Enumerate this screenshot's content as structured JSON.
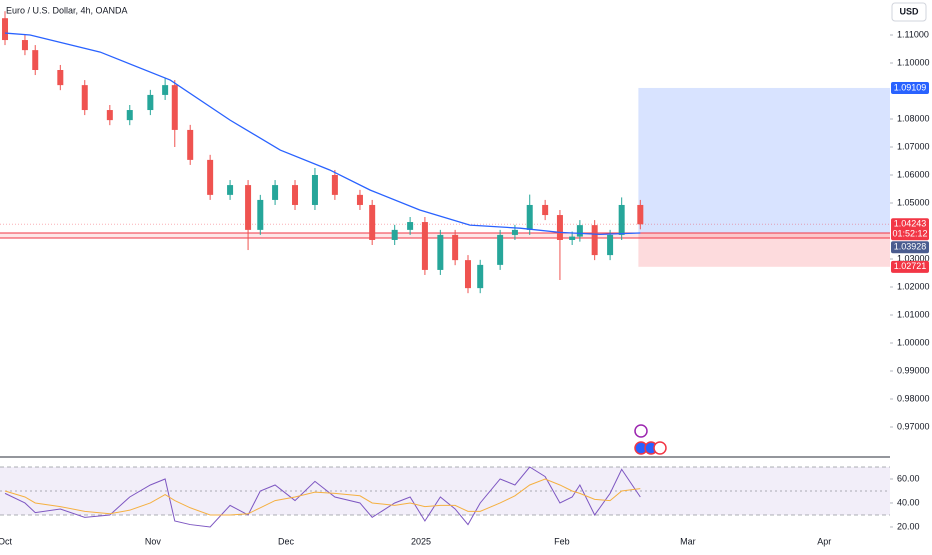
{
  "chart_data": [
    {
      "type": "candlestick",
      "title": "Euro / U.S. Dollar, 4h, OANDA",
      "currency": "USD",
      "up_color": "#26a69a",
      "down_color": "#ef5350",
      "x": [
        0,
        3.1,
        4.7,
        8.6,
        12.4,
        16.3,
        19.4,
        22.6,
        24.9,
        26.4,
        28.8,
        31.9,
        35.0,
        37.8,
        39.7,
        42.0,
        45.1,
        48.2,
        51.3,
        55.2,
        57.1,
        60.6,
        63.0,
        65.3,
        67.7,
        70.0,
        72.0,
        73.9,
        77.0,
        79.3,
        81.6,
        84.0,
        86.3,
        88.2,
        89.4,
        91.7,
        94.1,
        95.9,
        98.8
      ],
      "open": [
        1.116,
        1.1082,
        1.1046,
        1.0975,
        1.0921,
        1.0832,
        1.0796,
        1.0832,
        1.0886,
        1.0921,
        1.0761,
        1.0654,
        1.0529,
        1.0564,
        1.0404,
        1.0511,
        1.0564,
        1.0493,
        1.06,
        1.0529,
        1.0493,
        1.0368,
        1.0404,
        1.0432,
        1.0261,
        1.0386,
        1.0296,
        1.0196,
        1.0279,
        1.0386,
        1.0404,
        1.0493,
        1.0457,
        1.0368,
        1.038,
        1.0421,
        1.0314,
        1.0386,
        1.0493
      ],
      "high": [
        1.1185,
        1.11,
        1.1064,
        1.0993,
        1.0939,
        1.085,
        1.085,
        1.0904,
        1.0945,
        1.0939,
        1.0779,
        1.0672,
        1.0582,
        1.0582,
        1.0529,
        1.0582,
        1.0582,
        1.0625,
        1.0618,
        1.0547,
        1.0511,
        1.0422,
        1.045,
        1.045,
        1.0404,
        1.0404,
        1.0314,
        1.0297,
        1.0404,
        1.0422,
        1.053,
        1.0511,
        1.0475,
        1.0398,
        1.0439,
        1.0439,
        1.0404,
        1.052,
        1.0511
      ],
      "low": [
        1.1064,
        1.1028,
        1.0957,
        1.0903,
        1.0814,
        1.0778,
        1.0778,
        1.0814,
        1.0868,
        1.07,
        1.0636,
        1.0511,
        1.0511,
        1.0332,
        1.0386,
        1.0493,
        1.0475,
        1.0475,
        1.0511,
        1.0475,
        1.035,
        1.035,
        1.0386,
        1.0243,
        1.0243,
        1.0278,
        1.0178,
        1.0178,
        1.0261,
        1.0368,
        1.0386,
        1.0439,
        1.0225,
        1.035,
        1.0362,
        1.0296,
        1.0296,
        1.0368,
        1.0406
      ],
      "close": [
        1.1082,
        1.1046,
        1.0975,
        1.0921,
        1.0832,
        1.0796,
        1.0832,
        1.0886,
        1.0921,
        1.0761,
        1.0654,
        1.0529,
        1.0564,
        1.0404,
        1.0511,
        1.0564,
        1.0493,
        1.06,
        1.0529,
        1.0493,
        1.0368,
        1.0404,
        1.0432,
        1.0261,
        1.0386,
        1.0296,
        1.0196,
        1.0279,
        1.0386,
        1.0404,
        1.0493,
        1.0457,
        1.0368,
        1.038,
        1.0421,
        1.0314,
        1.0386,
        1.0493,
        1.0424
      ],
      "overlays": [
        {
          "color": "#2962ff",
          "x": [
            0,
            3.9,
            14.8,
            25.7,
            35.0,
            42.8,
            50.5,
            56.8,
            64.5,
            72.3,
            80.1,
            86.3,
            92.5,
            98.8
          ],
          "values": [
            1.1107,
            1.11,
            1.1039,
            1.0939,
            1.0796,
            1.0689,
            1.0618,
            1.0546,
            1.0475,
            1.0421,
            1.041,
            1.0395,
            1.0388,
            1.0393
          ]
        }
      ],
      "levels": [
        1.0393,
        1.0375
      ],
      "level_color": "#f23645",
      "position": {
        "x_start": 98.5,
        "entry": 1.0393,
        "target": 1.09109,
        "stop": 1.02721
      },
      "price_labels": [
        {
          "value": 1.09109,
          "color": "#2962ff"
        },
        {
          "value": 1.04243,
          "color": "#f23645",
          "countdown": "01:52:12"
        },
        {
          "value": 1.03928,
          "color": "#4a5c8f"
        },
        {
          "value": 1.02721,
          "color": "#f23645"
        }
      ],
      "xlim": [
        -0.78,
        137.63
      ],
      "ylim": [
        0.95929,
        1.1225
      ],
      "xticks": [
        {
          "value": 0,
          "label": "Oct"
        },
        {
          "value": 23,
          "label": "Nov"
        },
        {
          "value": 43.7,
          "label": "Dec"
        },
        {
          "value": 64.7,
          "label": "2025"
        },
        {
          "value": 86.6,
          "label": "Feb"
        },
        {
          "value": 106.2,
          "label": "Mar"
        },
        {
          "value": 127.4,
          "label": "Apr"
        }
      ],
      "yticks": [
        {
          "value": 1.11,
          "label": "1.11000"
        },
        {
          "value": 1.1,
          "label": "1.10000"
        },
        {
          "value": 1.08,
          "label": "1.08000"
        },
        {
          "value": 1.07,
          "label": "1.07000"
        },
        {
          "value": 1.06,
          "label": "1.06000"
        },
        {
          "value": 1.05,
          "label": "1.05000"
        },
        {
          "value": 1.03,
          "label": "1.03000"
        },
        {
          "value": 1.02,
          "label": "1.02000"
        },
        {
          "value": 1.01,
          "label": "1.01000"
        },
        {
          "value": 1.0,
          "label": "1.00000"
        },
        {
          "value": 0.99,
          "label": "0.99000"
        },
        {
          "value": 0.98,
          "label": "0.98000"
        },
        {
          "value": 0.97,
          "label": "0.97000"
        }
      ]
    },
    {
      "type": "line",
      "ylim": [
        10.8,
        77.5
      ],
      "bands": [
        70,
        50,
        30
      ],
      "yticks": [
        {
          "value": 60,
          "label": "60.00"
        },
        {
          "value": 40,
          "label": "40.00"
        },
        {
          "value": 20,
          "label": "20.00"
        }
      ],
      "series": [
        {
          "color": "#7e57c2",
          "values": [
            48,
            40,
            32,
            35,
            28,
            30,
            45,
            55,
            60,
            25,
            22,
            20,
            38,
            30,
            50,
            55,
            42,
            58,
            45,
            40,
            28,
            40,
            45,
            25,
            45,
            35,
            22,
            40,
            60,
            55,
            70,
            62,
            40,
            45,
            55,
            30,
            48,
            68,
            45
          ]
        },
        {
          "color": "#f5b041",
          "values": [
            50,
            45,
            40,
            37,
            33,
            31,
            34,
            40,
            47,
            42,
            36,
            30,
            30,
            31,
            36,
            42,
            45,
            49,
            48,
            46,
            40,
            38,
            40,
            37,
            38,
            38,
            33,
            33,
            40,
            46,
            55,
            60,
            55,
            50,
            48,
            43,
            42,
            50,
            52
          ]
        }
      ]
    }
  ]
}
